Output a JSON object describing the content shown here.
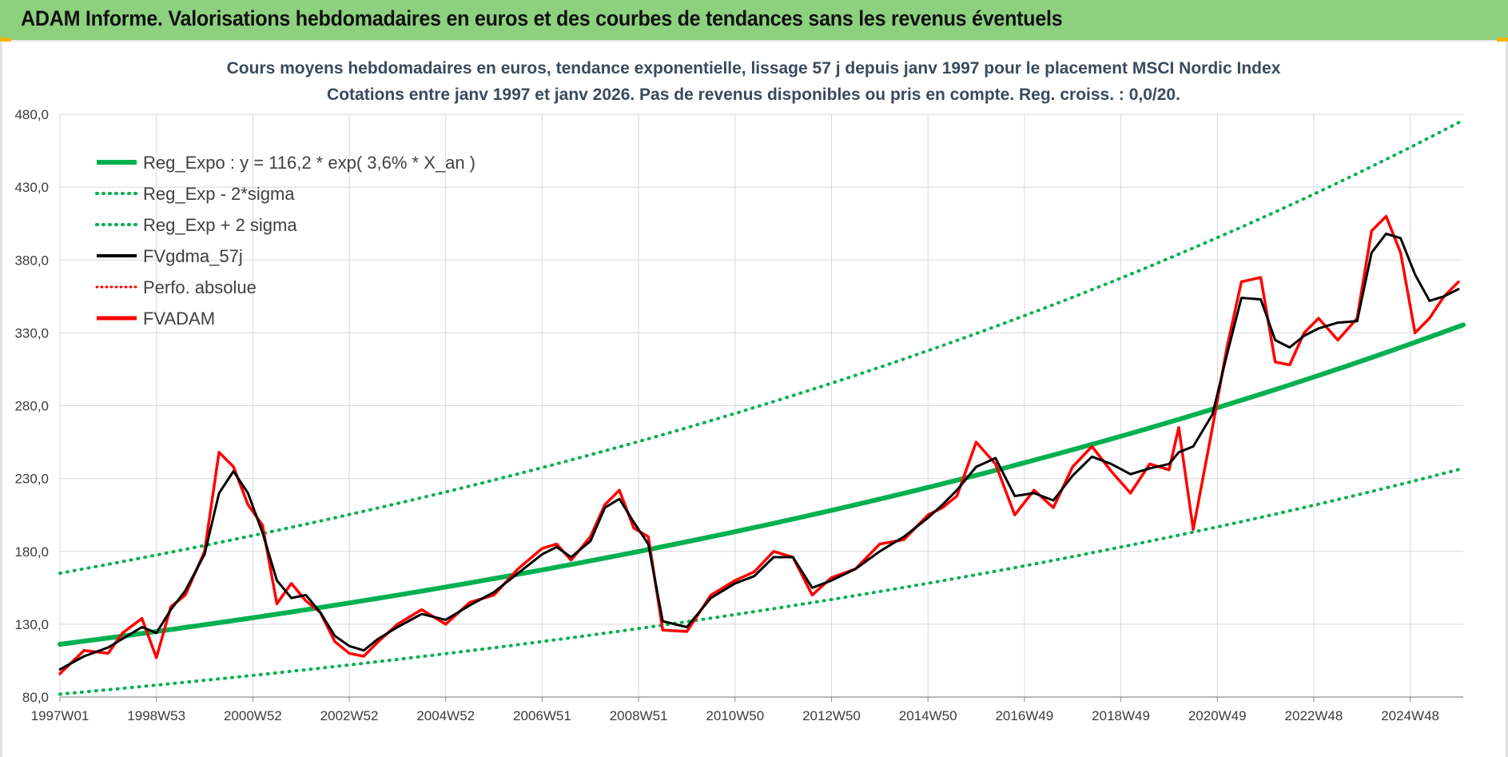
{
  "banner": {
    "title": "ADAM Informe. Valorisations hebdomadaires en euros et des courbes de tendances sans les revenus éventuels",
    "background": "#8dd17f",
    "corner_color": "#f2b600"
  },
  "chart_data": {
    "type": "line",
    "title_lines": [
      "Cours moyens hebdomadaires en euros, tendance exponentielle, lissage 57 j depuis janv 1997 pour le placement MSCI Nordic Index",
      "Cotations entre janv 1997 et janv 2026. Pas de revenus disponibles ou pris en compte. Reg. croiss. : 0,0/20."
    ],
    "xlabel": "",
    "ylabel": "",
    "x_range": [
      1997.0,
      2026.1
    ],
    "ylim": [
      80,
      480
    ],
    "y_ticks": [
      80,
      130,
      180,
      230,
      280,
      330,
      380,
      430,
      480
    ],
    "y_tick_labels": [
      "80,0",
      "130,0",
      "180,0",
      "230,0",
      "280,0",
      "330,0",
      "380,0",
      "430,0",
      "480,0"
    ],
    "x_ticks": [
      {
        "label": "1997W01",
        "x": 1997.0
      },
      {
        "label": "1998W53",
        "x": 1999.0
      },
      {
        "label": "2000W52",
        "x": 2001.0
      },
      {
        "label": "2002W52",
        "x": 2003.0
      },
      {
        "label": "2004W52",
        "x": 2005.0
      },
      {
        "label": "2006W51",
        "x": 2007.0
      },
      {
        "label": "2008W51",
        "x": 2009.0
      },
      {
        "label": "2010W50",
        "x": 2011.0
      },
      {
        "label": "2012W50",
        "x": 2013.0
      },
      {
        "label": "2014W50",
        "x": 2015.0
      },
      {
        "label": "2016W49",
        "x": 2017.0
      },
      {
        "label": "2018W49",
        "x": 2019.0
      },
      {
        "label": "2020W49",
        "x": 2021.0
      },
      {
        "label": "2022W48",
        "x": 2023.0
      },
      {
        "label": "2024W48",
        "x": 2025.0
      }
    ],
    "grid": true,
    "legend_position": "top-left",
    "series": [
      {
        "name": "Reg_Expo : y = 116,2 * exp( 3,6% *  X_an )",
        "color": "#00b050",
        "style": "solid-thick",
        "x": [
          1997.0,
          2000.0,
          2003.0,
          2006.0,
          2009.0,
          2012.0,
          2015.0,
          2018.0,
          2021.0,
          2024.0,
          2026.1
        ],
        "values": [
          116.2,
          130.0,
          145.5,
          162.7,
          182.1,
          203.7,
          227.9,
          255.0,
          285.3,
          319.2,
          335.5
        ]
      },
      {
        "name": "Reg_Exp - 2*sigma",
        "color": "#00b050",
        "style": "dotted",
        "x": [
          1997.0,
          2000.0,
          2003.0,
          2006.0,
          2009.0,
          2012.0,
          2015.0,
          2018.0,
          2021.0,
          2024.0,
          2026.1
        ],
        "values": [
          82.0,
          91.8,
          102.7,
          114.9,
          128.5,
          143.8,
          160.9,
          180.0,
          201.4,
          225.3,
          237.0
        ]
      },
      {
        "name": "Reg_Exp + 2 sigma",
        "color": "#00b050",
        "style": "dotted",
        "x": [
          1997.0,
          2000.0,
          2003.0,
          2006.0,
          2009.0,
          2012.0,
          2015.0,
          2018.0,
          2021.0,
          2024.0,
          2026.1
        ],
        "values": [
          165.0,
          184.6,
          206.6,
          231.1,
          258.6,
          289.3,
          323.7,
          362.1,
          405.2,
          453.3,
          476.0
        ]
      },
      {
        "name": "FVgdma_57j",
        "color": "#000000",
        "style": "solid",
        "x": [
          1997.0,
          1997.5,
          1998.0,
          1998.3,
          1998.7,
          1999.0,
          1999.3,
          1999.6,
          2000.0,
          2000.3,
          2000.6,
          2000.9,
          2001.2,
          2001.5,
          2001.8,
          2002.1,
          2002.4,
          2002.7,
          2003.0,
          2003.3,
          2003.6,
          2004.0,
          2004.5,
          2005.0,
          2005.5,
          2006.0,
          2006.5,
          2007.0,
          2007.3,
          2007.6,
          2008.0,
          2008.3,
          2008.6,
          2008.9,
          2009.2,
          2009.5,
          2010.0,
          2010.5,
          2011.0,
          2011.4,
          2011.8,
          2012.2,
          2012.6,
          2013.0,
          2013.5,
          2014.0,
          2014.5,
          2015.0,
          2015.3,
          2015.6,
          2016.0,
          2016.4,
          2016.8,
          2017.2,
          2017.6,
          2018.0,
          2018.4,
          2018.8,
          2019.2,
          2019.6,
          2020.0,
          2020.2,
          2020.5,
          2020.9,
          2021.2,
          2021.5,
          2021.9,
          2022.2,
          2022.5,
          2022.8,
          2023.1,
          2023.5,
          2023.9,
          2024.2,
          2024.5,
          2024.8,
          2025.1,
          2025.4,
          2025.7,
          2026.0
        ],
        "values": [
          99,
          108,
          114,
          120,
          128,
          124,
          140,
          153,
          178,
          220,
          235,
          220,
          193,
          160,
          148,
          150,
          138,
          122,
          115,
          112,
          120,
          128,
          137,
          133,
          143,
          152,
          165,
          178,
          183,
          176,
          187,
          210,
          216,
          200,
          185,
          132,
          128,
          148,
          158,
          163,
          176,
          176,
          155,
          160,
          168,
          180,
          190,
          203,
          212,
          222,
          238,
          244,
          218,
          220,
          215,
          232,
          245,
          240,
          233,
          237,
          240,
          248,
          252,
          274,
          315,
          354,
          353,
          325,
          320,
          328,
          333,
          337,
          338,
          385,
          398,
          395,
          370,
          352,
          355,
          360
        ]
      },
      {
        "name": "Perfo. absolue",
        "color": "#ff0000",
        "style": "dotted",
        "x": [
          1997.0,
          1997.5,
          1998.0,
          1998.3,
          1998.7,
          1999.0,
          1999.3,
          1999.6,
          2000.0,
          2000.3,
          2000.6,
          2000.9,
          2001.2,
          2001.5,
          2001.8,
          2002.1,
          2002.4,
          2002.7,
          2003.0,
          2003.3,
          2003.6,
          2004.0,
          2004.5,
          2005.0,
          2005.5,
          2006.0,
          2006.5,
          2007.0,
          2007.3,
          2007.6,
          2008.0,
          2008.3,
          2008.6,
          2008.9,
          2009.2,
          2009.5,
          2010.0,
          2010.5,
          2011.0,
          2011.4,
          2011.8,
          2012.2,
          2012.6,
          2013.0,
          2013.5,
          2014.0,
          2014.5,
          2015.0,
          2015.3,
          2015.6,
          2016.0,
          2016.4,
          2016.8,
          2017.2,
          2017.6,
          2018.0,
          2018.4,
          2018.8,
          2019.2,
          2019.6,
          2020.0,
          2020.2,
          2020.5,
          2020.9,
          2021.2,
          2021.5,
          2021.9,
          2022.2,
          2022.5,
          2022.8,
          2023.1,
          2023.5,
          2023.9,
          2024.2,
          2024.5,
          2024.8,
          2025.1,
          2025.4,
          2025.7,
          2026.0
        ],
        "values": [
          96,
          112,
          110,
          124,
          134,
          107,
          142,
          150,
          180,
          248,
          238,
          212,
          198,
          144,
          158,
          146,
          138,
          118,
          110,
          108,
          118,
          130,
          140,
          130,
          145,
          150,
          168,
          182,
          185,
          174,
          190,
          212,
          222,
          196,
          190,
          126,
          125,
          150,
          160,
          166,
          180,
          176,
          150,
          162,
          168,
          185,
          188,
          205,
          210,
          218,
          255,
          240,
          205,
          222,
          210,
          238,
          252,
          235,
          220,
          240,
          236,
          265,
          195,
          265,
          320,
          365,
          368,
          310,
          308,
          330,
          340,
          325,
          340,
          400,
          410,
          385,
          330,
          340,
          355,
          365
        ]
      },
      {
        "name": "FVADAM",
        "color": "#ff0000",
        "style": "solid-thick",
        "x": [
          1997.0,
          1997.5,
          1998.0,
          1998.3,
          1998.7,
          1999.0,
          1999.3,
          1999.6,
          2000.0,
          2000.3,
          2000.6,
          2000.9,
          2001.2,
          2001.5,
          2001.8,
          2002.1,
          2002.4,
          2002.7,
          2003.0,
          2003.3,
          2003.6,
          2004.0,
          2004.5,
          2005.0,
          2005.5,
          2006.0,
          2006.5,
          2007.0,
          2007.3,
          2007.6,
          2008.0,
          2008.3,
          2008.6,
          2008.9,
          2009.2,
          2009.5,
          2010.0,
          2010.5,
          2011.0,
          2011.4,
          2011.8,
          2012.2,
          2012.6,
          2013.0,
          2013.5,
          2014.0,
          2014.5,
          2015.0,
          2015.3,
          2015.6,
          2016.0,
          2016.4,
          2016.8,
          2017.2,
          2017.6,
          2018.0,
          2018.4,
          2018.8,
          2019.2,
          2019.6,
          2020.0,
          2020.2,
          2020.5,
          2020.9,
          2021.2,
          2021.5,
          2021.9,
          2022.2,
          2022.5,
          2022.8,
          2023.1,
          2023.5,
          2023.9,
          2024.2,
          2024.5,
          2024.8,
          2025.1,
          2025.4,
          2025.7,
          2026.0
        ],
        "values": [
          96,
          112,
          110,
          124,
          134,
          107,
          142,
          150,
          180,
          248,
          238,
          212,
          198,
          144,
          158,
          146,
          138,
          118,
          110,
          108,
          118,
          130,
          140,
          130,
          145,
          150,
          168,
          182,
          185,
          174,
          190,
          212,
          222,
          196,
          190,
          126,
          125,
          150,
          160,
          166,
          180,
          176,
          150,
          162,
          168,
          185,
          188,
          205,
          210,
          218,
          255,
          240,
          205,
          222,
          210,
          238,
          252,
          235,
          220,
          240,
          236,
          265,
          195,
          265,
          320,
          365,
          368,
          310,
          308,
          330,
          340,
          325,
          340,
          400,
          410,
          385,
          330,
          340,
          355,
          365
        ]
      }
    ]
  }
}
